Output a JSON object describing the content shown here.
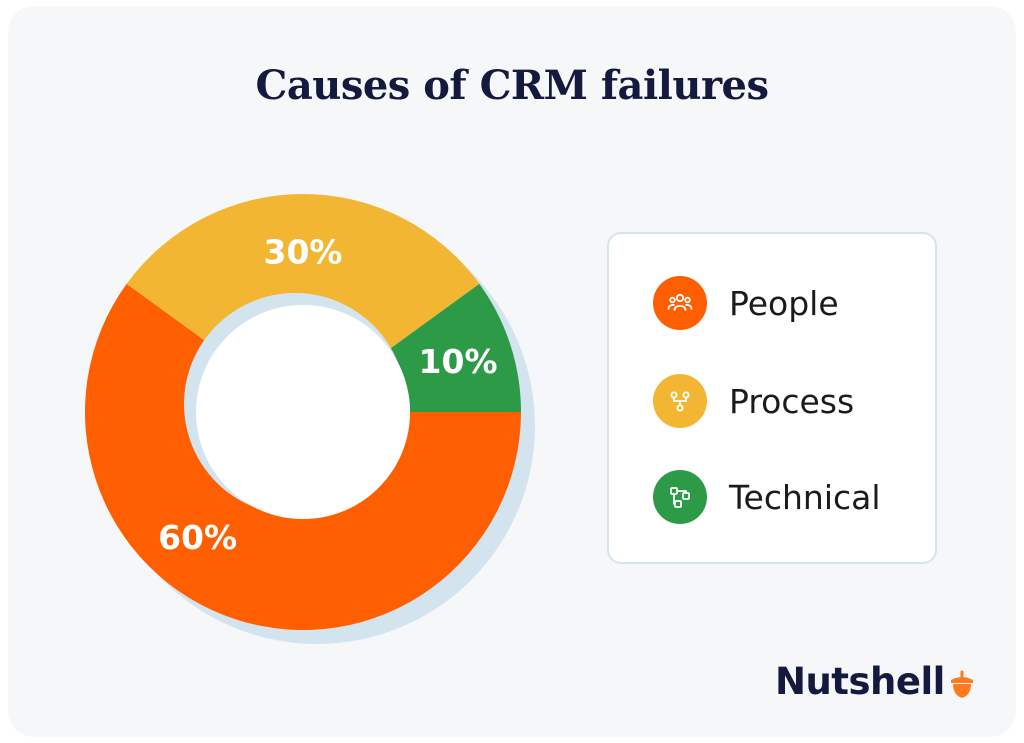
{
  "title": "Causes of CRM failures",
  "chart_data": {
    "type": "pie",
    "title": "Causes of CRM failures",
    "slices": [
      {
        "name": "People",
        "value": 60,
        "label": "60%",
        "color": "#ff5f00"
      },
      {
        "name": "Process",
        "value": 30,
        "label": "30%",
        "color": "#f2b632"
      },
      {
        "name": "Technical",
        "value": 10,
        "label": "10%",
        "color": "#2d9a47"
      }
    ],
    "donut": true,
    "legend_placement": "right"
  },
  "legend": {
    "items": [
      {
        "label": "People",
        "icon": "people-icon",
        "color": "#ff5f00"
      },
      {
        "label": "Process",
        "icon": "process-icon",
        "color": "#f2b632"
      },
      {
        "label": "Technical",
        "icon": "technical-icon",
        "color": "#2d9a47"
      }
    ]
  },
  "brand": {
    "name": "Nutshell",
    "logo_icon": "acorn-icon",
    "accent_color": "#ff7a1a"
  }
}
